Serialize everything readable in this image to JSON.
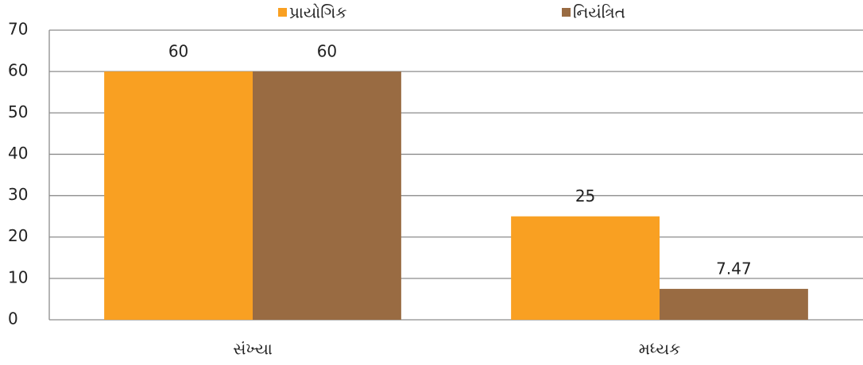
{
  "chart_data": {
    "type": "bar",
    "categories": [
      "સંખ્યા",
      "મધ્યક"
    ],
    "series": [
      {
        "name": "પ્રાયોગિક",
        "color": "#f9a022",
        "values": [
          60,
          25
        ]
      },
      {
        "name": "નિયંત્રિત",
        "color": "#996b42",
        "values": [
          60,
          7.47
        ]
      }
    ],
    "ylim": [
      0,
      70
    ],
    "yticks": [
      0,
      10,
      20,
      30,
      40,
      50,
      60,
      70
    ],
    "grid": true,
    "legend": "top"
  }
}
